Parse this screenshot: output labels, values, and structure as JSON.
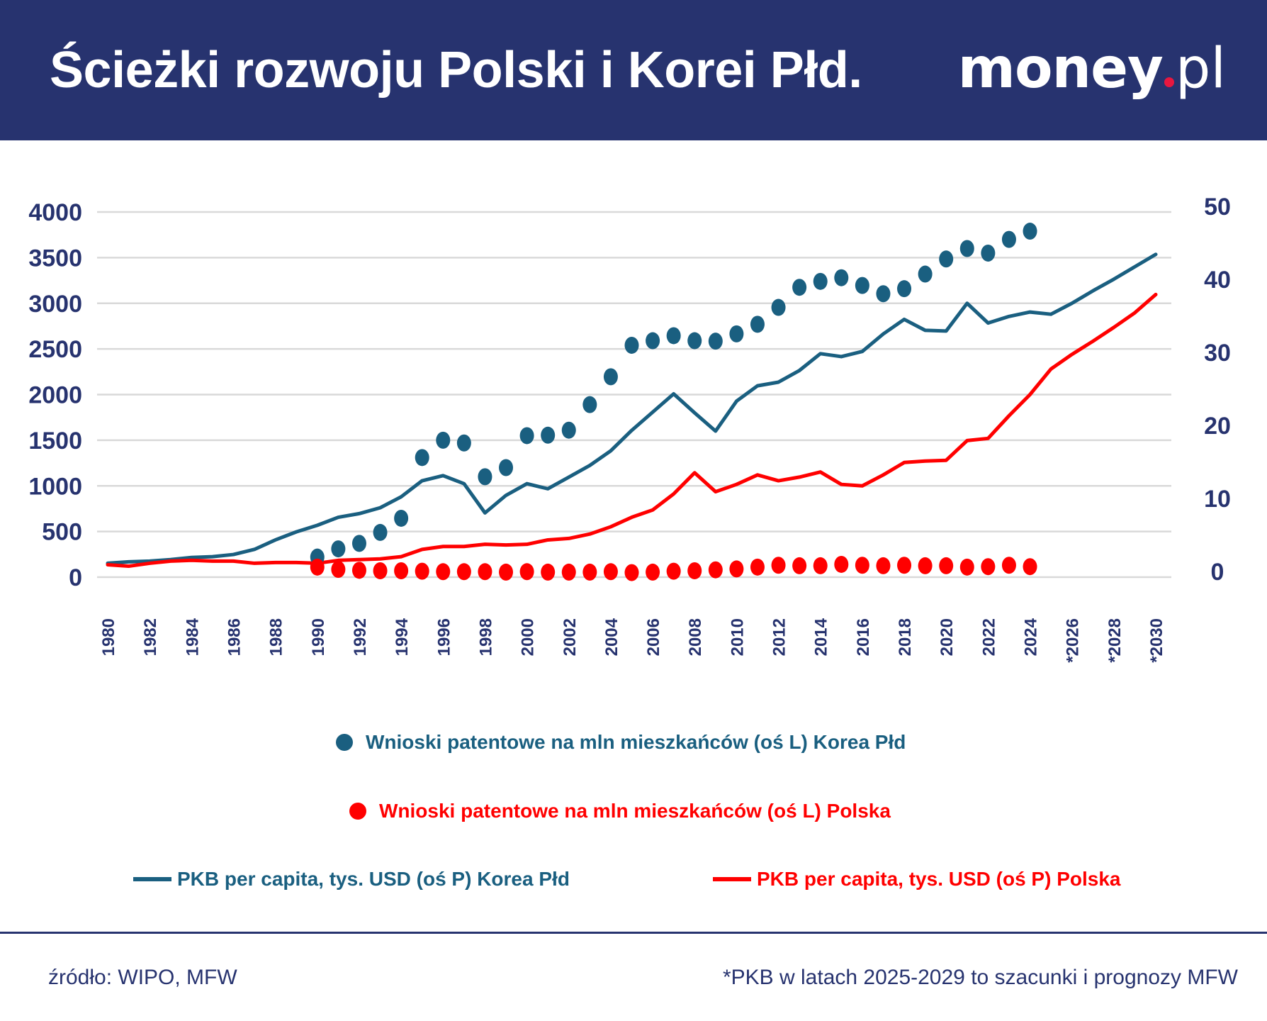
{
  "header": {
    "title": "Ścieżki rozwoju Polski i Korei Płd.",
    "logo_text": "money.pl",
    "logo_main": "money",
    "logo_suffix": "pl"
  },
  "colors": {
    "header_bg": "#27336f",
    "korea": "#1a5f80",
    "poland": "#ff0000",
    "axis_text": "#27336f",
    "grid": "#d9d9d9",
    "logo_dot": "#e8173f"
  },
  "chart_data": {
    "type": "line+scatter",
    "x_tick_labels": [
      "1980",
      "1982",
      "1984",
      "1986",
      "1988",
      "1990",
      "1992",
      "1994",
      "1996",
      "1998",
      "2000",
      "2002",
      "2004",
      "2006",
      "2008",
      "2010",
      "2012",
      "2014",
      "2016",
      "2018",
      "2020",
      "2022",
      "2024",
      "*2026",
      "*2028",
      "*2030"
    ],
    "left_axis": {
      "ylim": [
        0,
        4000
      ],
      "ticks": [
        "0",
        "500",
        "1000",
        "1500",
        "2000",
        "2500",
        "3000",
        "3500",
        "4000"
      ]
    },
    "right_axis": {
      "ylim": [
        0,
        50
      ],
      "ticks": [
        "0",
        "10",
        "20",
        "30",
        "40",
        "50"
      ]
    },
    "grid": true,
    "legend_placement": "bottom",
    "series": [
      {
        "name": "Wnioski patentowe na mln mieszkańców (oś L) Korea Płd",
        "kind": "scatter",
        "axis": "left",
        "color": "#1a5f80",
        "x": [
          1990,
          1991,
          1992,
          1993,
          1994,
          1995,
          1996,
          1997,
          1998,
          1999,
          2000,
          2001,
          2002,
          2003,
          2004,
          2005,
          2006,
          2007,
          2008,
          2009,
          2010,
          2011,
          2012,
          2013,
          2014,
          2015,
          2016,
          2017,
          2018,
          2019,
          2020,
          2021,
          2022,
          2023,
          2024
        ],
        "values": [
          220,
          310,
          370,
          490,
          645,
          1310,
          1500,
          1470,
          1100,
          1200,
          1550,
          1555,
          1610,
          1890,
          2195,
          2540,
          2590,
          2645,
          2590,
          2585,
          2665,
          2770,
          2955,
          3175,
          3240,
          3280,
          3195,
          3105,
          3160,
          3320,
          3485,
          3600,
          3550,
          3700,
          3790
        ]
      },
      {
        "name": "Wnioski patentowe na mln mieszkańców (oś L) Polska",
        "kind": "scatter",
        "axis": "left",
        "color": "#ff0000",
        "x": [
          1990,
          1991,
          1992,
          1993,
          1994,
          1995,
          1996,
          1997,
          1998,
          1999,
          2000,
          2001,
          2002,
          2003,
          2004,
          2005,
          2006,
          2007,
          2008,
          2009,
          2010,
          2011,
          2012,
          2013,
          2014,
          2015,
          2016,
          2017,
          2018,
          2019,
          2020,
          2021,
          2022,
          2023,
          2024
        ],
        "values": [
          110,
          85,
          75,
          70,
          70,
          65,
          60,
          60,
          60,
          55,
          60,
          55,
          55,
          55,
          60,
          50,
          55,
          65,
          70,
          80,
          90,
          110,
          130,
          125,
          125,
          140,
          130,
          125,
          130,
          125,
          125,
          110,
          115,
          130,
          115
        ]
      },
      {
        "name": "PKB per capita, tys. USD (oś P) Korea Płd",
        "kind": "line",
        "axis": "right",
        "color": "#1a5f80",
        "x": [
          1980,
          1981,
          1982,
          1983,
          1984,
          1985,
          1986,
          1987,
          1988,
          1989,
          1990,
          1991,
          1992,
          1993,
          1994,
          1995,
          1996,
          1997,
          1998,
          1999,
          2000,
          2001,
          2002,
          2003,
          2004,
          2005,
          2006,
          2007,
          2008,
          2009,
          2010,
          2011,
          2012,
          2013,
          2014,
          2015,
          2016,
          2017,
          2018,
          2019,
          2020,
          2021,
          2022,
          2023,
          2024,
          2025,
          2026,
          2027,
          2028,
          2029,
          2030
        ],
        "values": [
          1.9,
          2.1,
          2.2,
          2.4,
          2.7,
          2.8,
          3.1,
          3.8,
          5.1,
          6.2,
          7.1,
          8.2,
          8.7,
          9.5,
          11.0,
          13.2,
          13.9,
          12.8,
          8.8,
          11.2,
          12.8,
          12.1,
          13.7,
          15.3,
          17.3,
          20.1,
          22.6,
          25.1,
          22.5,
          20.0,
          24.1,
          26.2,
          26.7,
          28.3,
          30.6,
          30.2,
          30.9,
          33.3,
          35.3,
          33.8,
          33.7,
          37.5,
          34.8,
          35.7,
          36.3,
          36.0,
          37.5,
          39.2,
          40.8,
          42.5,
          44.2
        ]
      },
      {
        "name": "PKB per capita, tys. USD (oś P) Polska",
        "kind": "line",
        "axis": "right",
        "color": "#ff0000",
        "x": [
          1980,
          1981,
          1982,
          1983,
          1984,
          1985,
          1986,
          1987,
          1988,
          1989,
          1990,
          1991,
          1992,
          1993,
          1994,
          1995,
          1996,
          1997,
          1998,
          1999,
          2000,
          2001,
          2002,
          2003,
          2004,
          2005,
          2006,
          2007,
          2008,
          2009,
          2010,
          2011,
          2012,
          2013,
          2014,
          2015,
          2016,
          2017,
          2018,
          2019,
          2020,
          2021,
          2022,
          2023,
          2024,
          2025,
          2026,
          2027,
          2028,
          2029,
          2030
        ],
        "values": [
          1.7,
          1.5,
          1.9,
          2.2,
          2.3,
          2.2,
          2.2,
          1.9,
          2.0,
          2.0,
          1.9,
          2.3,
          2.4,
          2.5,
          2.8,
          3.8,
          4.2,
          4.2,
          4.5,
          4.4,
          4.5,
          5.1,
          5.3,
          5.9,
          6.9,
          8.2,
          9.2,
          11.4,
          14.3,
          11.7,
          12.7,
          14.0,
          13.2,
          13.7,
          14.4,
          12.7,
          12.5,
          14.0,
          15.7,
          15.9,
          16.0,
          18.7,
          19.0,
          22.1,
          25.0,
          28.5,
          30.5,
          32.3,
          34.2,
          36.2,
          38.7
        ]
      }
    ]
  },
  "footer": {
    "source": "źródło: WIPO, MFW",
    "note": "*PKB w latach 2025-2029 to szacunki i prognozy MFW"
  }
}
